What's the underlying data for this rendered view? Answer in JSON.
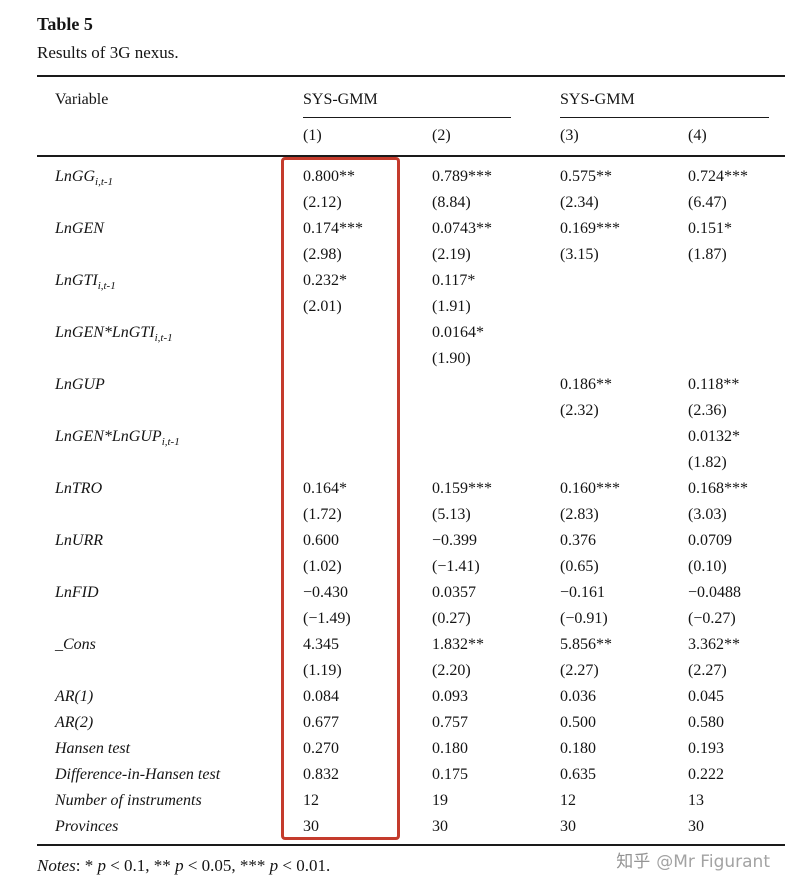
{
  "table": {
    "title": "Table 5",
    "subtitle": "Results of 3G nexus.",
    "variable_header": "Variable",
    "col_groups": [
      "SYS-GMM",
      "SYS-GMM"
    ],
    "model_headers": [
      "(1)",
      "(2)",
      "(3)",
      "(4)"
    ],
    "rows": [
      {
        "variable": "LnGG",
        "sub": "i,t-1",
        "cells": [
          [
            "0.800**",
            "(2.12)"
          ],
          [
            "0.789***",
            "(8.84)"
          ],
          [
            "0.575**",
            "(2.34)"
          ],
          [
            "0.724***",
            "(6.47)"
          ]
        ]
      },
      {
        "variable": "LnGEN",
        "sub": "",
        "cells": [
          [
            "0.174***",
            "(2.98)"
          ],
          [
            "0.0743**",
            "(2.19)"
          ],
          [
            "0.169***",
            "(3.15)"
          ],
          [
            "0.151*",
            "(1.87)"
          ]
        ]
      },
      {
        "variable": "LnGTI",
        "sub": "i,t-1",
        "cells": [
          [
            "0.232*",
            "(2.01)"
          ],
          [
            "0.117*",
            "(1.91)"
          ],
          [],
          []
        ]
      },
      {
        "variable": "LnGEN*LnGTI",
        "sub": "i,t-1",
        "cells": [
          [],
          [
            "0.0164*",
            "(1.90)"
          ],
          [],
          []
        ]
      },
      {
        "variable": "LnGUP",
        "sub": "",
        "cells": [
          [],
          [],
          [
            "0.186**",
            "(2.32)"
          ],
          [
            "0.118**",
            "(2.36)"
          ]
        ]
      },
      {
        "variable": "LnGEN*LnGUP",
        "sub": "i,t-1",
        "cells": [
          [],
          [],
          [],
          [
            "0.0132*",
            "(1.82)"
          ]
        ]
      },
      {
        "variable": "LnTRO",
        "sub": "",
        "cells": [
          [
            "0.164*",
            "(1.72)"
          ],
          [
            "0.159***",
            "(5.13)"
          ],
          [
            "0.160***",
            "(2.83)"
          ],
          [
            "0.168***",
            "(3.03)"
          ]
        ]
      },
      {
        "variable": "LnURR",
        "sub": "",
        "cells": [
          [
            "0.600",
            "(1.02)"
          ],
          [
            "−0.399",
            "(−1.41)"
          ],
          [
            "0.376",
            "(0.65)"
          ],
          [
            "0.0709",
            "(0.10)"
          ]
        ]
      },
      {
        "variable": "LnFID",
        "sub": "",
        "cells": [
          [
            "−0.430",
            "(−1.49)"
          ],
          [
            "0.0357",
            "(0.27)"
          ],
          [
            "−0.161",
            "(−0.91)"
          ],
          [
            "−0.0488",
            "(−0.27)"
          ]
        ]
      },
      {
        "variable": "_Cons",
        "sub": "",
        "cells": [
          [
            "4.345",
            "(1.19)"
          ],
          [
            "1.832**",
            "(2.20)"
          ],
          [
            "5.856**",
            "(2.27)"
          ],
          [
            "3.362**",
            "(2.27)"
          ]
        ]
      },
      {
        "variable": "AR(1)",
        "sub": "",
        "cells": [
          [
            "0.084"
          ],
          [
            "0.093"
          ],
          [
            "0.036"
          ],
          [
            "0.045"
          ]
        ]
      },
      {
        "variable": "AR(2)",
        "sub": "",
        "cells": [
          [
            "0.677"
          ],
          [
            "0.757"
          ],
          [
            "0.500"
          ],
          [
            "0.580"
          ]
        ]
      },
      {
        "variable": "Hansen test",
        "sub": "",
        "cells": [
          [
            "0.270"
          ],
          [
            "0.180"
          ],
          [
            "0.180"
          ],
          [
            "0.193"
          ]
        ]
      },
      {
        "variable": "Difference-in-Hansen test",
        "sub": "",
        "cells": [
          [
            "0.832"
          ],
          [
            "0.175"
          ],
          [
            "0.635"
          ],
          [
            "0.222"
          ]
        ]
      },
      {
        "variable": "Number of instruments",
        "sub": "",
        "cells": [
          [
            "12"
          ],
          [
            "19"
          ],
          [
            "12"
          ],
          [
            "13"
          ]
        ]
      },
      {
        "variable": "Provinces",
        "sub": "",
        "cells": [
          [
            "30"
          ],
          [
            "30"
          ],
          [
            "30"
          ],
          [
            "30"
          ]
        ]
      }
    ]
  },
  "notes": {
    "segments": [
      {
        "text": "Notes",
        "italic": true
      },
      {
        "text": ": * ",
        "italic": false
      },
      {
        "text": "p",
        "italic": true
      },
      {
        "text": " < 0.1, ** ",
        "italic": false
      },
      {
        "text": "p",
        "italic": true
      },
      {
        "text": " < 0.05, *** ",
        "italic": false
      },
      {
        "text": "p",
        "italic": true
      },
      {
        "text": " < 0.01.",
        "italic": false
      }
    ]
  },
  "watermark": {
    "brand": "知乎",
    "handle": "@Mr Figurant"
  },
  "colors": {
    "highlight_red": "#c43b2c",
    "watermark_gray": "#a3a3a3",
    "text": "#141414"
  }
}
